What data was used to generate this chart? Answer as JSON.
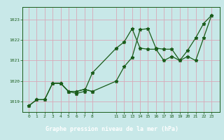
{
  "bg_color": "#c8e8e8",
  "grid_color": "#d8a8b8",
  "line_color": "#1a5c1a",
  "title": "Graphe pression niveau de la mer (hPa)",
  "ylim": [
    1018.5,
    1023.6
  ],
  "yticks": [
    1019,
    1020,
    1021,
    1022,
    1023
  ],
  "xlabel_bg": "#2d6b2d",
  "xlabel_fg": "#ffffff",
  "line_a": {
    "x": [
      0,
      1,
      2,
      3,
      4,
      5,
      6,
      7,
      8
    ],
    "y": [
      1018.8,
      1019.1,
      1019.1,
      1019.9,
      1019.9,
      1019.5,
      1019.5,
      1019.6,
      1019.5
    ]
  },
  "line_b": {
    "x": [
      0,
      1,
      2,
      3,
      4,
      5,
      6,
      7,
      8,
      11,
      12,
      13,
      14,
      15,
      16,
      17,
      18,
      19,
      20,
      21,
      22,
      23
    ],
    "y": [
      1018.8,
      1019.1,
      1019.1,
      1019.9,
      1019.9,
      1019.5,
      1019.5,
      1019.6,
      1019.5,
      1020.0,
      1020.7,
      1021.15,
      1022.5,
      1022.55,
      1021.6,
      1021.55,
      1021.55,
      1021.0,
      1021.2,
      1021.0,
      1022.1,
      1023.2
    ]
  },
  "line_c": {
    "x": [
      3,
      4,
      5,
      6,
      7,
      8,
      11,
      12,
      13,
      14,
      15,
      16,
      17,
      18,
      19,
      20,
      21,
      22,
      23
    ],
    "y": [
      1019.9,
      1019.9,
      1019.5,
      1019.4,
      1019.5,
      1020.4,
      1021.6,
      1021.9,
      1022.55,
      1021.6,
      1021.55,
      1021.55,
      1021.0,
      1021.2,
      1021.0,
      1021.5,
      1022.1,
      1022.8,
      1023.2
    ]
  },
  "xtick_positions": [
    0,
    1,
    2,
    3,
    4,
    5,
    6,
    7,
    8,
    11,
    12,
    13,
    14,
    15,
    16,
    17,
    18,
    19,
    20,
    21,
    22,
    23
  ],
  "xtick_labels": [
    "0",
    "1",
    "2",
    "3",
    "4",
    "5",
    "6",
    "7",
    "8",
    "11",
    "12",
    "13",
    "14",
    "15",
    "16",
    "17",
    "18",
    "19",
    "20",
    "21",
    "22",
    "23"
  ],
  "xlim": [
    -0.8,
    24.0
  ]
}
